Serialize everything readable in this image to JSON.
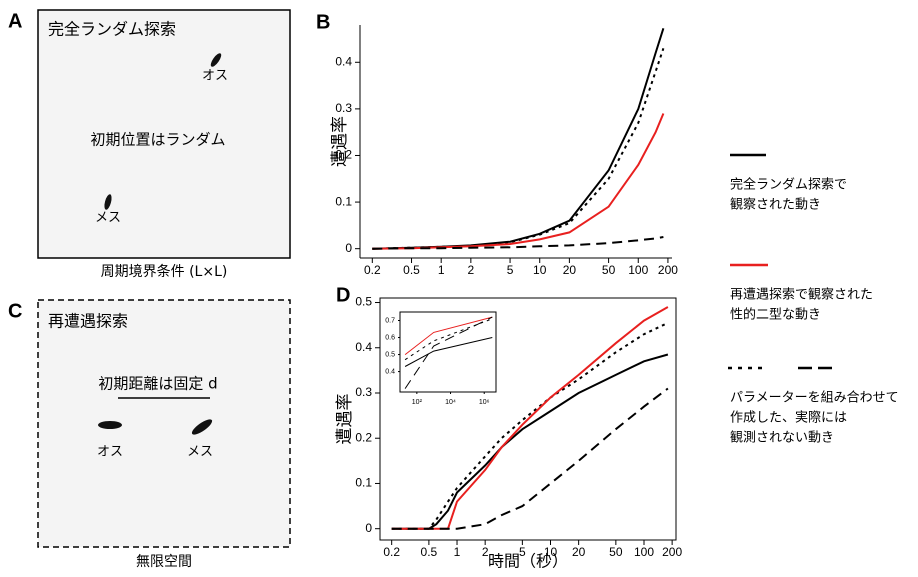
{
  "panel_a": {
    "letter": "A",
    "title": "完全ランダム探索",
    "male": "オス",
    "female": "メス",
    "note": "初期位置はランダム",
    "caption": "周期境界条件 (L×L)"
  },
  "panel_c": {
    "letter": "C",
    "title": "再遭遇探索",
    "note": "初期距離は固定 d",
    "male": "オス",
    "female": "メス",
    "caption": "無限空間"
  },
  "chart_data": [
    {
      "type": "line",
      "panel": "B",
      "ylabel": "遭遇率",
      "log_x": true,
      "box": false,
      "xlim": [
        0.15,
        220
      ],
      "ylim": [
        -0.02,
        0.48
      ],
      "xticks": [
        0.2,
        0.5,
        1,
        2,
        5,
        10,
        20,
        50,
        100,
        200
      ],
      "yticks": [
        0,
        0.1,
        0.2,
        0.3,
        0.4
      ],
      "x": [
        0.2,
        0.5,
        1,
        2,
        5,
        10,
        20,
        50,
        100,
        150,
        180
      ],
      "series": [
        {
          "color": "#000000",
          "dash": "solid",
          "values": [
            0,
            0.002,
            0.004,
            0.007,
            0.015,
            0.032,
            0.06,
            0.168,
            0.3,
            0.42,
            0.473
          ]
        },
        {
          "color": "#000000",
          "dash": "dotted",
          "values": [
            0,
            0.002,
            0.004,
            0.006,
            0.014,
            0.03,
            0.055,
            0.15,
            0.27,
            0.38,
            0.43
          ]
        },
        {
          "color": "#e8201f",
          "dash": "solid",
          "values": [
            0,
            0.001,
            0.003,
            0.005,
            0.01,
            0.02,
            0.035,
            0.09,
            0.18,
            0.25,
            0.29
          ]
        },
        {
          "color": "#000000",
          "dash": "dashed",
          "values": [
            0,
            0.001,
            0.001,
            0.002,
            0.003,
            0.005,
            0.007,
            0.012,
            0.018,
            0.022,
            0.025
          ]
        }
      ]
    },
    {
      "type": "line",
      "panel": "D",
      "ylabel": "遭遇率",
      "xlabel": "時間（秒）",
      "log_x": true,
      "box": true,
      "xlim": [
        0.15,
        220
      ],
      "ylim": [
        -0.025,
        0.51
      ],
      "xticks": [
        0.2,
        0.5,
        1,
        2,
        5,
        10,
        20,
        50,
        100,
        200
      ],
      "yticks": [
        0,
        0.1,
        0.2,
        0.3,
        0.4,
        0.5
      ],
      "x": [
        0.2,
        0.5,
        0.6,
        0.8,
        1,
        2,
        3,
        5,
        10,
        20,
        50,
        100,
        180
      ],
      "series": [
        {
          "color": "#000000",
          "dash": "solid",
          "values": [
            0,
            0,
            0.01,
            0.04,
            0.08,
            0.14,
            0.18,
            0.22,
            0.26,
            0.3,
            0.34,
            0.37,
            0.385
          ]
        },
        {
          "color": "#000000",
          "dash": "dotted",
          "values": [
            0,
            0,
            0.02,
            0.06,
            0.09,
            0.16,
            0.2,
            0.24,
            0.29,
            0.33,
            0.39,
            0.43,
            0.455
          ]
        },
        {
          "color": "#e8201f",
          "dash": "solid",
          "values": [
            0,
            0,
            0,
            0,
            0.06,
            0.13,
            0.18,
            0.23,
            0.29,
            0.34,
            0.41,
            0.46,
            0.49
          ]
        },
        {
          "color": "#000000",
          "dash": "dashed",
          "values": [
            0,
            0,
            0,
            0,
            0,
            0.01,
            0.03,
            0.05,
            0.1,
            0.15,
            0.22,
            0.27,
            0.31
          ]
        }
      ]
    },
    {
      "type": "line",
      "log_x": true,
      "box": true,
      "xlim": [
        10,
        5000000
      ],
      "ylim": [
        0.28,
        0.75
      ],
      "xticks": [
        {
          "value": 100,
          "label": "10²"
        },
        {
          "value": 10000,
          "label": "10⁴"
        },
        {
          "value": 1000000,
          "label": "10⁶"
        }
      ],
      "yticks": [
        0.4,
        0.5,
        0.6,
        0.7
      ],
      "x": [
        20,
        1000,
        3000000
      ],
      "series": [
        {
          "color": "#e8201f",
          "dash": "solid",
          "values": [
            0.5,
            0.63,
            0.72
          ]
        },
        {
          "color": "#000000",
          "dash": "dotted",
          "values": [
            0.47,
            0.58,
            0.71
          ]
        },
        {
          "color": "#000000",
          "dash": "solid",
          "values": [
            0.43,
            0.52,
            0.6
          ]
        },
        {
          "color": "#000000",
          "dash": "dashed",
          "values": [
            0.3,
            0.55,
            0.72
          ]
        }
      ]
    }
  ],
  "legend": {
    "entries": [
      {
        "lines": [
          "完全ランダム探索で",
          "観察された動き"
        ]
      },
      {
        "lines": [
          "再遭遇探索で観察された",
          "性的二型な動き"
        ]
      },
      {
        "lines": [
          "パラメーターを組み合わせて",
          "作成した、実際には",
          "観測されない動き"
        ]
      }
    ]
  }
}
